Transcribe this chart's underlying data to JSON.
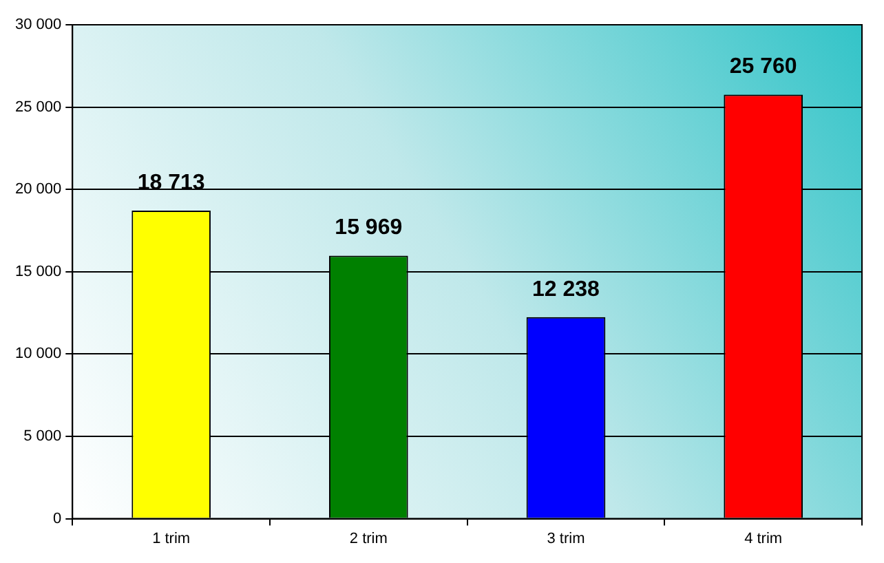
{
  "chart_data": {
    "type": "bar",
    "categories": [
      "1 trim",
      "2 trim",
      "3 trim",
      "4 trim"
    ],
    "values": [
      18713,
      15969,
      12238,
      25760
    ],
    "colors": [
      "#ffff00",
      "#008000",
      "#0000ff",
      "#ff0000"
    ],
    "value_labels": [
      "18 713",
      "15 969",
      "12 238",
      "25 760"
    ],
    "ylim": [
      0,
      30000
    ],
    "yticks": [
      {
        "value": 0,
        "label": "0"
      },
      {
        "value": 5000,
        "label": "5 000"
      },
      {
        "value": 10000,
        "label": "10 000"
      },
      {
        "value": 15000,
        "label": "15 000"
      },
      {
        "value": 20000,
        "label": "20 000"
      },
      {
        "value": 25000,
        "label": "25 000"
      },
      {
        "value": 30000,
        "label": "30 000"
      }
    ],
    "grid": "y",
    "legend": false
  }
}
